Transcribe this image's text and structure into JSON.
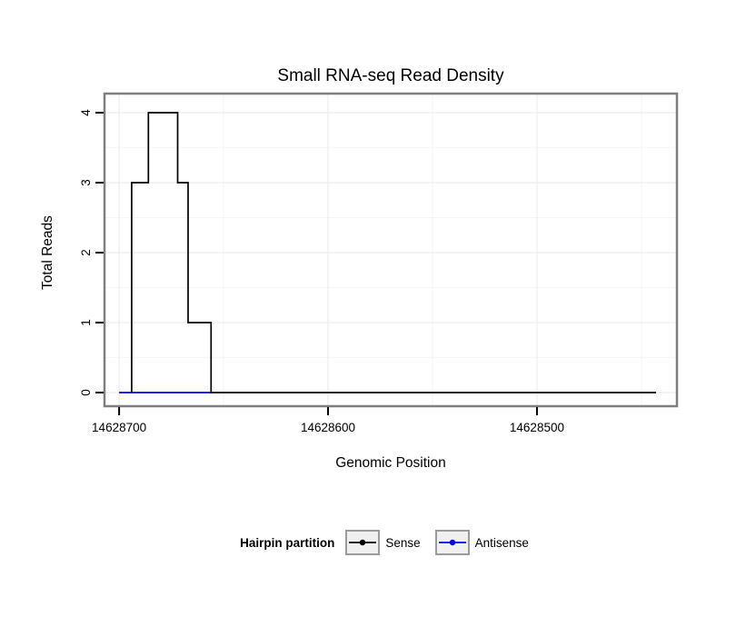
{
  "chart_data": {
    "type": "line",
    "title": "Small RNA-seq Read Density",
    "xlabel": "Genomic Position",
    "ylabel": "Total Reads",
    "x_axis": {
      "left_value": 14628707,
      "right_value": 14628433,
      "ticks": [
        14628700,
        14628600,
        14628500
      ],
      "minor_ticks": [
        14628650,
        14628550,
        14628450
      ],
      "direction": "decreasing"
    },
    "y_axis": {
      "min": 0,
      "max": 4,
      "ticks": [
        0,
        1,
        2,
        3,
        4
      ],
      "minor_ticks": [
        0.5,
        1.5,
        2.5,
        3.5
      ]
    },
    "legend": {
      "title": "Hairpin partition",
      "position": "bottom"
    },
    "series": [
      {
        "name": "Sense",
        "color": "#000000",
        "points": [
          [
            14628694,
            0
          ],
          [
            14628694,
            3
          ],
          [
            14628686,
            3
          ],
          [
            14628686,
            4
          ],
          [
            14628672,
            4
          ],
          [
            14628672,
            3
          ],
          [
            14628667,
            3
          ],
          [
            14628667,
            1
          ],
          [
            14628656,
            1
          ],
          [
            14628656,
            0
          ],
          [
            14628443,
            0
          ]
        ]
      },
      {
        "name": "Antisense",
        "color": "#0000ee",
        "points": [
          [
            14628700,
            0
          ],
          [
            14628656,
            0
          ]
        ]
      }
    ],
    "style": {
      "panel_border_color": "#7f7f7f",
      "grid_major_color": "#ededed",
      "grid_minor_color": "#f6f6f6",
      "background": "#ffffff"
    }
  }
}
